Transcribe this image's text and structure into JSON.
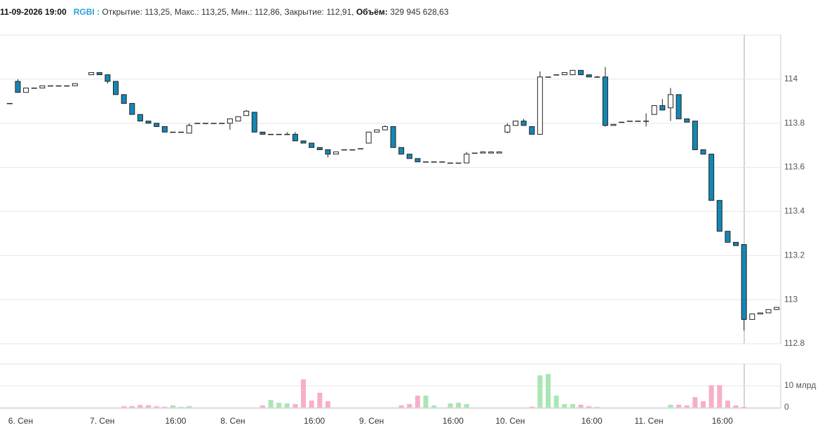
{
  "chart_data": {
    "type": "candlestick",
    "header": {
      "datetime": "11-09-2026 19:00",
      "symbol": "RGBI :",
      "fields": "Открытие: 113,25, Макс.: 113,25, Мин.: 112,86, Закрытие: 112,91,",
      "volume_label": "Объём:",
      "volume_value": "329 945 628,63"
    },
    "categories": [
      null,
      "6. Сен",
      null,
      null,
      null,
      null,
      null,
      null,
      null,
      null,
      null,
      "7. Сен",
      null,
      null,
      null,
      null,
      null,
      null,
      null,
      null,
      "16:00",
      null,
      null,
      null,
      null,
      null,
      null,
      "8. Сен",
      null,
      null,
      null,
      null,
      null,
      null,
      null,
      null,
      null,
      "16:00",
      null,
      null,
      null,
      null,
      null,
      null,
      "9. Сен",
      null,
      null,
      null,
      null,
      null,
      null,
      null,
      null,
      null,
      "16:00",
      null,
      null,
      null,
      null,
      null,
      null,
      "10. Сен",
      null,
      null,
      null,
      null,
      null,
      null,
      null,
      null,
      null,
      "16:00",
      null,
      null,
      null,
      null,
      null,
      null,
      "11. Сен",
      null,
      null,
      null,
      null,
      null,
      null,
      null,
      null,
      "16:00",
      null,
      null,
      null,
      null,
      null,
      null,
      null
    ],
    "open": [
      113.89,
      113.99,
      113.94,
      113.96,
      113.96,
      113.97,
      113.97,
      113.97,
      113.97,
      null,
      114.02,
      114.03,
      114.02,
      113.99,
      113.93,
      113.89,
      113.84,
      113.81,
      113.8,
      113.785,
      113.76,
      113.76,
      113.755,
      113.8,
      113.8,
      113.8,
      113.8,
      113.8,
      113.81,
      113.835,
      113.85,
      113.76,
      113.75,
      113.75,
      113.75,
      113.75,
      113.72,
      113.71,
      113.69,
      113.68,
      113.66,
      113.68,
      113.68,
      113.685,
      113.71,
      113.76,
      113.77,
      113.785,
      113.69,
      113.66,
      113.64,
      113.625,
      113.625,
      113.625,
      113.62,
      113.62,
      113.62,
      113.665,
      113.665,
      113.665,
      113.665,
      113.76,
      113.79,
      113.81,
      113.785,
      113.75,
      114.01,
      114.02,
      114.02,
      114.02,
      114.04,
      114.02,
      114.01,
      114.01,
      113.79,
      113.805,
      113.81,
      113.81,
      113.81,
      113.84,
      113.88,
      113.87,
      113.93,
      113.82,
      113.81,
      113.68,
      113.66,
      113.45,
      113.31,
      113.26,
      113.25,
      112.91,
      112.935,
      112.94,
      112.955
    ],
    "high": [
      113.89,
      114.0,
      113.96,
      113.96,
      113.97,
      113.97,
      113.97,
      113.97,
      113.98,
      null,
      114.03,
      114.03,
      114.02,
      113.99,
      113.93,
      113.89,
      113.84,
      113.81,
      113.8,
      113.785,
      113.76,
      113.76,
      113.8,
      113.8,
      113.8,
      113.8,
      113.8,
      113.82,
      113.83,
      113.86,
      113.85,
      113.76,
      113.75,
      113.75,
      113.76,
      113.76,
      113.72,
      113.71,
      113.69,
      113.68,
      113.67,
      113.68,
      113.68,
      113.685,
      113.76,
      113.77,
      113.79,
      113.785,
      113.69,
      113.66,
      113.64,
      113.625,
      113.625,
      113.625,
      113.62,
      113.62,
      113.67,
      113.665,
      113.67,
      113.67,
      113.67,
      113.8,
      113.81,
      113.82,
      113.785,
      114.035,
      114.01,
      114.02,
      114.03,
      114.04,
      114.04,
      114.02,
      114.015,
      114.055,
      113.795,
      113.805,
      113.81,
      113.81,
      113.845,
      113.88,
      113.91,
      113.96,
      113.93,
      113.82,
      113.81,
      113.68,
      113.66,
      113.45,
      113.31,
      113.26,
      113.25,
      112.935,
      112.94,
      112.955,
      112.965
    ],
    "low": [
      113.89,
      113.94,
      113.94,
      113.96,
      113.96,
      113.97,
      113.97,
      113.97,
      113.97,
      null,
      114.02,
      114.02,
      113.98,
      113.93,
      113.89,
      113.84,
      113.81,
      113.8,
      113.785,
      113.76,
      113.76,
      113.76,
      113.755,
      113.8,
      113.8,
      113.8,
      113.8,
      113.77,
      113.81,
      113.835,
      113.76,
      113.75,
      113.75,
      113.75,
      113.75,
      113.72,
      113.71,
      113.69,
      113.68,
      113.645,
      113.66,
      113.68,
      113.68,
      113.685,
      113.71,
      113.76,
      113.77,
      113.69,
      113.66,
      113.64,
      113.625,
      113.625,
      113.625,
      113.625,
      113.62,
      113.62,
      113.62,
      113.665,
      113.665,
      113.665,
      113.665,
      113.755,
      113.79,
      113.79,
      113.75,
      113.75,
      114.01,
      114.02,
      114.02,
      114.02,
      114.02,
      114.01,
      114.01,
      113.785,
      113.79,
      113.805,
      113.81,
      113.81,
      113.785,
      113.84,
      113.86,
      113.81,
      113.82,
      113.805,
      113.68,
      113.66,
      113.45,
      113.31,
      113.26,
      113.245,
      112.86,
      112.91,
      112.935,
      112.94,
      112.955
    ],
    "close": [
      113.89,
      113.94,
      113.96,
      113.96,
      113.97,
      113.97,
      113.97,
      113.97,
      113.98,
      null,
      114.03,
      114.02,
      113.99,
      113.93,
      113.89,
      113.84,
      113.81,
      113.8,
      113.785,
      113.76,
      113.76,
      113.76,
      113.79,
      113.8,
      113.8,
      113.8,
      113.8,
      113.82,
      113.83,
      113.855,
      113.76,
      113.75,
      113.75,
      113.75,
      113.75,
      113.72,
      113.71,
      113.69,
      113.68,
      113.66,
      113.67,
      113.68,
      113.68,
      113.685,
      113.76,
      113.77,
      113.785,
      113.69,
      113.66,
      113.64,
      113.625,
      113.625,
      113.625,
      113.625,
      113.62,
      113.62,
      113.66,
      113.665,
      113.67,
      113.67,
      113.67,
      113.79,
      113.81,
      113.79,
      113.75,
      114.01,
      114.01,
      114.02,
      114.03,
      114.04,
      114.02,
      114.01,
      114.01,
      113.79,
      113.795,
      113.805,
      113.81,
      113.81,
      113.81,
      113.88,
      113.86,
      113.93,
      113.82,
      113.805,
      113.68,
      113.66,
      113.45,
      113.31,
      113.26,
      113.245,
      112.91,
      112.935,
      112.94,
      112.955,
      112.965
    ],
    "volume": [
      null,
      null,
      null,
      null,
      null,
      null,
      null,
      null,
      null,
      null,
      null,
      null,
      null,
      null,
      600000000,
      700000000,
      1200000000,
      1100000000,
      600000000,
      400000000,
      1000000000,
      300000000,
      700000000,
      null,
      null,
      null,
      null,
      null,
      null,
      null,
      null,
      1000000000,
      3500000000,
      2200000000,
      1900000000,
      1600000000,
      13000000000,
      3200000000,
      6800000000,
      2900000000,
      null,
      null,
      null,
      null,
      null,
      null,
      null,
      null,
      1000000000,
      1600000000,
      5500000000,
      5500000000,
      1000000000,
      null,
      1900000000,
      2200000000,
      1600000000,
      null,
      null,
      null,
      null,
      null,
      null,
      null,
      400000000,
      14800000000,
      15400000000,
      5500000000,
      1600000000,
      1600000000,
      1300000000,
      600000000,
      300000000,
      null,
      null,
      null,
      null,
      null,
      null,
      null,
      null,
      1300000000,
      1300000000,
      1000000000,
      4800000000,
      2900000000,
      10300000000,
      10300000000,
      3200000000,
      1000000000,
      329945628.63,
      null,
      null,
      null,
      null
    ],
    "ylim": [
      112.8,
      114.2
    ],
    "yticks": [
      112.8,
      113,
      113.2,
      113.4,
      113.6,
      113.8,
      114
    ],
    "volume_ylim": [
      0,
      20000000000
    ],
    "volume_ticks": [
      0,
      {
        "value": 10000000000,
        "label": "10 млрд"
      }
    ],
    "grid": true,
    "up_color": "#ffffff",
    "down_color": "#1487b5",
    "outline_color": "#222222",
    "volume_up_color": "#a9e6b3",
    "volume_down_color": "#f7afc9"
  }
}
